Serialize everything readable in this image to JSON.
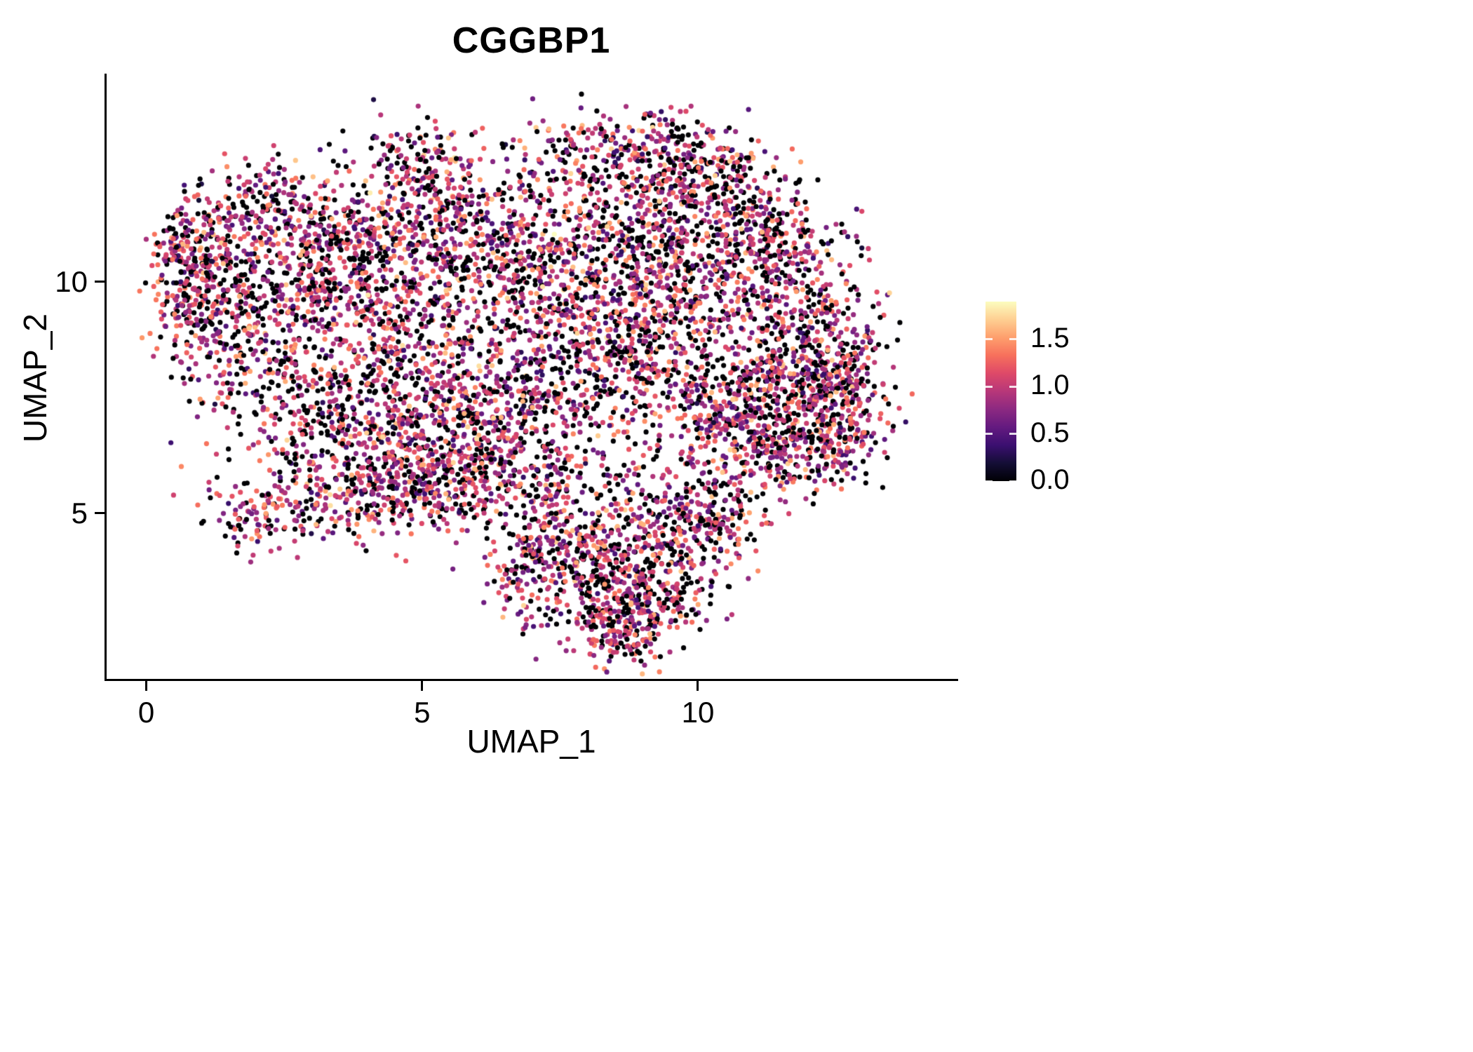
{
  "chart_data": {
    "type": "scatter",
    "title": "CGGBP1",
    "xlabel": "UMAP_1",
    "ylabel": "UMAP_2",
    "xlim": [
      -0.72,
      14.68
    ],
    "ylim": [
      1.42,
      14.5
    ],
    "grid": false,
    "x_ticks": [
      {
        "value": 0,
        "label": "0"
      },
      {
        "value": 5,
        "label": "5"
      },
      {
        "value": 10,
        "label": "10"
      }
    ],
    "y_ticks": [
      {
        "value": 5,
        "label": "5"
      },
      {
        "value": 10,
        "label": "10"
      }
    ],
    "point_radius": 3.6,
    "seed": 42,
    "count_scale": 0.7,
    "value_distribution": {
      "zero_fraction": 0.33,
      "nonzero_min": 0.15,
      "nonzero_max": 1.9
    },
    "colorbar": {
      "position": "right",
      "domain": [
        0.0,
        1.9
      ],
      "ticks": [
        {
          "value": 0.0,
          "label": "0.0"
        },
        {
          "value": 0.5,
          "label": "0.5"
        },
        {
          "value": 1.0,
          "label": "1.0"
        },
        {
          "value": 1.5,
          "label": "1.5"
        }
      ],
      "colormap": "magma",
      "stops": [
        [
          0.0,
          "#000004"
        ],
        [
          0.1,
          "#140e36"
        ],
        [
          0.2,
          "#3b0f70"
        ],
        [
          0.3,
          "#641a80"
        ],
        [
          0.4,
          "#8c2981"
        ],
        [
          0.5,
          "#b73779"
        ],
        [
          0.6,
          "#de4968"
        ],
        [
          0.7,
          "#f7705c"
        ],
        [
          0.8,
          "#fe9f6d"
        ],
        [
          0.9,
          "#fecf92"
        ],
        [
          1.0,
          "#fcfdbf"
        ]
      ]
    },
    "clusters": [
      [
        0.7,
        10.2,
        0.35,
        0.8,
        260
      ],
      [
        1.3,
        9.2,
        0.55,
        0.7,
        220
      ],
      [
        1.1,
        10.9,
        0.5,
        0.45,
        160
      ],
      [
        2.4,
        11.8,
        0.6,
        0.5,
        220
      ],
      [
        3.3,
        11.0,
        0.7,
        0.6,
        220
      ],
      [
        2.6,
        10.0,
        0.8,
        0.7,
        260
      ],
      [
        4.8,
        12.6,
        0.5,
        0.45,
        170
      ],
      [
        5.6,
        11.9,
        0.7,
        0.5,
        200
      ],
      [
        4.5,
        11.0,
        0.8,
        0.6,
        200
      ],
      [
        3.9,
        9.7,
        1.0,
        0.8,
        330
      ],
      [
        5.5,
        10.4,
        0.9,
        0.7,
        280
      ],
      [
        6.6,
        10.9,
        0.7,
        0.6,
        180
      ],
      [
        2.2,
        8.2,
        0.8,
        0.8,
        300
      ],
      [
        3.6,
        7.2,
        0.9,
        0.8,
        340
      ],
      [
        5.0,
        8.5,
        0.9,
        0.8,
        300
      ],
      [
        4.6,
        6.4,
        0.9,
        0.7,
        340
      ],
      [
        5.9,
        6.9,
        0.8,
        0.7,
        280
      ],
      [
        6.3,
        8.1,
        0.8,
        0.8,
        240
      ],
      [
        7.2,
        9.8,
        0.8,
        0.8,
        240
      ],
      [
        7.8,
        12.6,
        0.8,
        0.5,
        220
      ],
      [
        9.1,
        12.9,
        0.7,
        0.45,
        200
      ],
      [
        10.0,
        12.3,
        0.7,
        0.5,
        240
      ],
      [
        10.9,
        11.6,
        0.6,
        0.6,
        200
      ],
      [
        8.6,
        11.3,
        0.8,
        0.7,
        180
      ],
      [
        8.4,
        10.2,
        0.9,
        0.8,
        260
      ],
      [
        9.6,
        10.8,
        0.8,
        0.7,
        240
      ],
      [
        9.2,
        9.3,
        0.9,
        0.8,
        280
      ],
      [
        10.6,
        9.9,
        0.7,
        0.7,
        240
      ],
      [
        11.5,
        10.7,
        0.6,
        0.6,
        200
      ],
      [
        11.9,
        9.3,
        0.7,
        0.8,
        300
      ],
      [
        12.3,
        8.0,
        0.55,
        0.8,
        380
      ],
      [
        11.3,
        7.5,
        0.7,
        0.7,
        340
      ],
      [
        10.4,
        6.9,
        0.7,
        0.6,
        280
      ],
      [
        11.7,
        6.3,
        0.6,
        0.5,
        260
      ],
      [
        12.7,
        7.0,
        0.35,
        0.6,
        200
      ],
      [
        9.5,
        7.8,
        0.8,
        0.7,
        220
      ],
      [
        8.3,
        8.6,
        0.8,
        0.7,
        220
      ],
      [
        7.6,
        7.3,
        0.8,
        0.7,
        200
      ],
      [
        6.9,
        6.2,
        0.7,
        0.6,
        180
      ],
      [
        2.9,
        5.3,
        0.8,
        0.45,
        200
      ],
      [
        4.5,
        5.4,
        0.9,
        0.5,
        260
      ],
      [
        1.9,
        4.9,
        0.4,
        0.3,
        90
      ],
      [
        5.8,
        5.7,
        0.6,
        0.5,
        160
      ],
      [
        8.0,
        5.6,
        1.0,
        0.5,
        110
      ],
      [
        7.4,
        4.6,
        0.6,
        0.6,
        190
      ],
      [
        8.6,
        4.6,
        0.8,
        0.6,
        240
      ],
      [
        9.8,
        4.5,
        0.6,
        0.6,
        220
      ],
      [
        8.2,
        3.4,
        0.8,
        0.6,
        320
      ],
      [
        9.2,
        3.3,
        0.6,
        0.5,
        240
      ],
      [
        8.6,
        2.4,
        0.5,
        0.35,
        170
      ],
      [
        10.4,
        5.0,
        0.45,
        0.5,
        130
      ],
      [
        6.9,
        3.6,
        0.4,
        0.5,
        120
      ]
    ]
  }
}
